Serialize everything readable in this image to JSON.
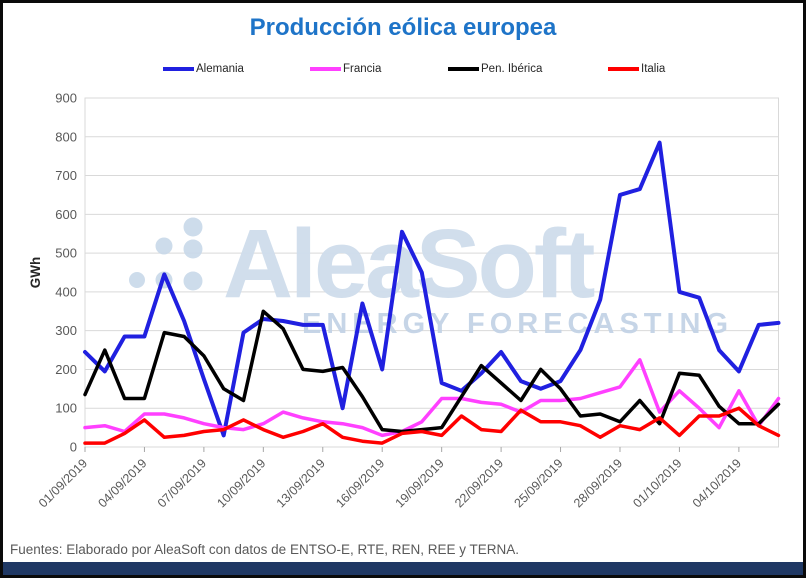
{
  "title": "Producción eólica europea",
  "title_color": "#1E74C8",
  "footer": {
    "source_text": "Fuentes: Elaborado por AleaSoft con datos de ENTSO-E, RTE, REN, REE y TERNA."
  },
  "brand_bar_color": "#1F3864",
  "watermark": {
    "brand_text": "AleaSoft",
    "tagline_text": "ENERGY FORECASTING",
    "text_color": "#CFDDEC",
    "tagline_color": "#C3D3E6",
    "dot_color": "#C8D8E9"
  },
  "chart_data": {
    "type": "line",
    "title": "Producción eólica europea",
    "xlabel": "",
    "ylabel": "GWh",
    "ylim": [
      0,
      900
    ],
    "ytick_step": 100,
    "grid": true,
    "grid_color": "#D9D9D9",
    "axis_text_color": "#595959",
    "tick_color": "#A6A6A6",
    "legend_position": "top",
    "categories": [
      "01/09/2019",
      "02/09/2019",
      "03/09/2019",
      "04/09/2019",
      "05/09/2019",
      "06/09/2019",
      "07/09/2019",
      "08/09/2019",
      "09/09/2019",
      "10/09/2019",
      "11/09/2019",
      "12/09/2019",
      "13/09/2019",
      "14/09/2019",
      "15/09/2019",
      "16/09/2019",
      "17/09/2019",
      "18/09/2019",
      "19/09/2019",
      "20/09/2019",
      "21/09/2019",
      "22/09/2019",
      "23/09/2019",
      "24/09/2019",
      "25/09/2019",
      "26/09/2019",
      "27/09/2019",
      "28/09/2019",
      "29/09/2019",
      "30/09/2019",
      "01/10/2019",
      "02/10/2019",
      "03/10/2019",
      "04/10/2019",
      "05/10/2019",
      "06/10/2019"
    ],
    "xticks": [
      {
        "index": 0,
        "label": "01/09/2019"
      },
      {
        "index": 3,
        "label": "04/09/2019"
      },
      {
        "index": 6,
        "label": "07/09/2019"
      },
      {
        "index": 9,
        "label": "10/09/2019"
      },
      {
        "index": 12,
        "label": "13/09/2019"
      },
      {
        "index": 15,
        "label": "16/09/2019"
      },
      {
        "index": 18,
        "label": "19/09/2019"
      },
      {
        "index": 21,
        "label": "22/09/2019"
      },
      {
        "index": 24,
        "label": "25/09/2019"
      },
      {
        "index": 27,
        "label": "28/09/2019"
      },
      {
        "index": 30,
        "label": "01/10/2019"
      },
      {
        "index": 33,
        "label": "04/10/2019"
      }
    ],
    "series": [
      {
        "name": "Alemania",
        "color": "#2020E0",
        "values": [
          245,
          195,
          285,
          285,
          445,
          325,
          175,
          30,
          295,
          330,
          325,
          315,
          315,
          100,
          370,
          200,
          555,
          450,
          165,
          145,
          190,
          245,
          170,
          150,
          170,
          250,
          380,
          650,
          665,
          785,
          400,
          385,
          250,
          195,
          315,
          320
        ]
      },
      {
        "name": "Francia",
        "color": "#FF40FF",
        "values": [
          50,
          55,
          40,
          85,
          85,
          75,
          60,
          50,
          45,
          60,
          90,
          75,
          65,
          60,
          50,
          30,
          40,
          65,
          125,
          125,
          115,
          110,
          90,
          120,
          120,
          125,
          140,
          155,
          225,
          90,
          145,
          100,
          50,
          145,
          55,
          125
        ]
      },
      {
        "name": "Pen. Ibérica",
        "color": "#000000",
        "values": [
          135,
          250,
          125,
          125,
          295,
          285,
          235,
          150,
          120,
          350,
          305,
          200,
          195,
          205,
          130,
          45,
          40,
          45,
          50,
          130,
          210,
          165,
          120,
          200,
          150,
          80,
          85,
          65,
          120,
          60,
          190,
          185,
          105,
          60,
          60,
          110
        ]
      },
      {
        "name": "Italia",
        "color": "#FF0000",
        "values": [
          10,
          10,
          35,
          70,
          25,
          30,
          40,
          45,
          70,
          45,
          25,
          40,
          60,
          25,
          15,
          10,
          35,
          40,
          30,
          80,
          45,
          40,
          95,
          65,
          65,
          55,
          25,
          55,
          45,
          75,
          30,
          80,
          80,
          100,
          55,
          30
        ]
      }
    ]
  }
}
